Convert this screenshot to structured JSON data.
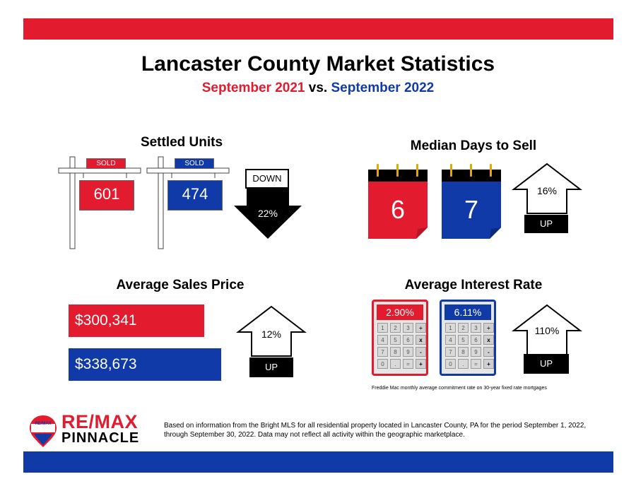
{
  "header": {
    "title": "Lancaster County Market Statistics",
    "subtitle_left": "September 2021",
    "subtitle_vs": "vs.",
    "subtitle_right": "September 2022"
  },
  "settled_units": {
    "title": "Settled Units",
    "sign_label": "SOLD",
    "value_2021": "601",
    "value_2022": "474",
    "change_direction": "DOWN",
    "change_pct": "22%"
  },
  "median_days": {
    "title": "Median Days to Sell",
    "value_2021": "6",
    "value_2022": "7",
    "change_pct": "16%",
    "change_direction": "UP"
  },
  "avg_price": {
    "title": "Average Sales Price",
    "value_2021": "$300,341",
    "value_2022": "$338,673",
    "bar_fill_2021": 0.887,
    "bar_fill_2022": 1.0,
    "change_pct": "12%",
    "change_direction": "UP"
  },
  "interest_rate": {
    "title": "Average Interest Rate",
    "value_2021": "2.90%",
    "value_2022": "6.11%",
    "change_pct": "110%",
    "change_direction": "UP",
    "keys": [
      "1",
      "2",
      "3",
      "÷",
      "4",
      "5",
      "6",
      "x",
      "7",
      "8",
      "9",
      "-",
      "0",
      ".",
      "=",
      "+"
    ],
    "note": "Freddie Mac monthly average commitment rate on 30-year fixed rate mortgages"
  },
  "footer": {
    "logo_line1": "RE/MAX",
    "logo_line2": "PINNACLE",
    "balloon_label": "RE/MAX",
    "disclaimer": "Based on information from the Bright MLS for all residential property located in Lancaster County, PA for the period September 1, 2022, through September 30, 2022.  Data may not reflect all activity within the geographic marketplace."
  },
  "colors": {
    "red": "#e21b2e",
    "blue": "#0f3aa8",
    "black": "#000000"
  }
}
